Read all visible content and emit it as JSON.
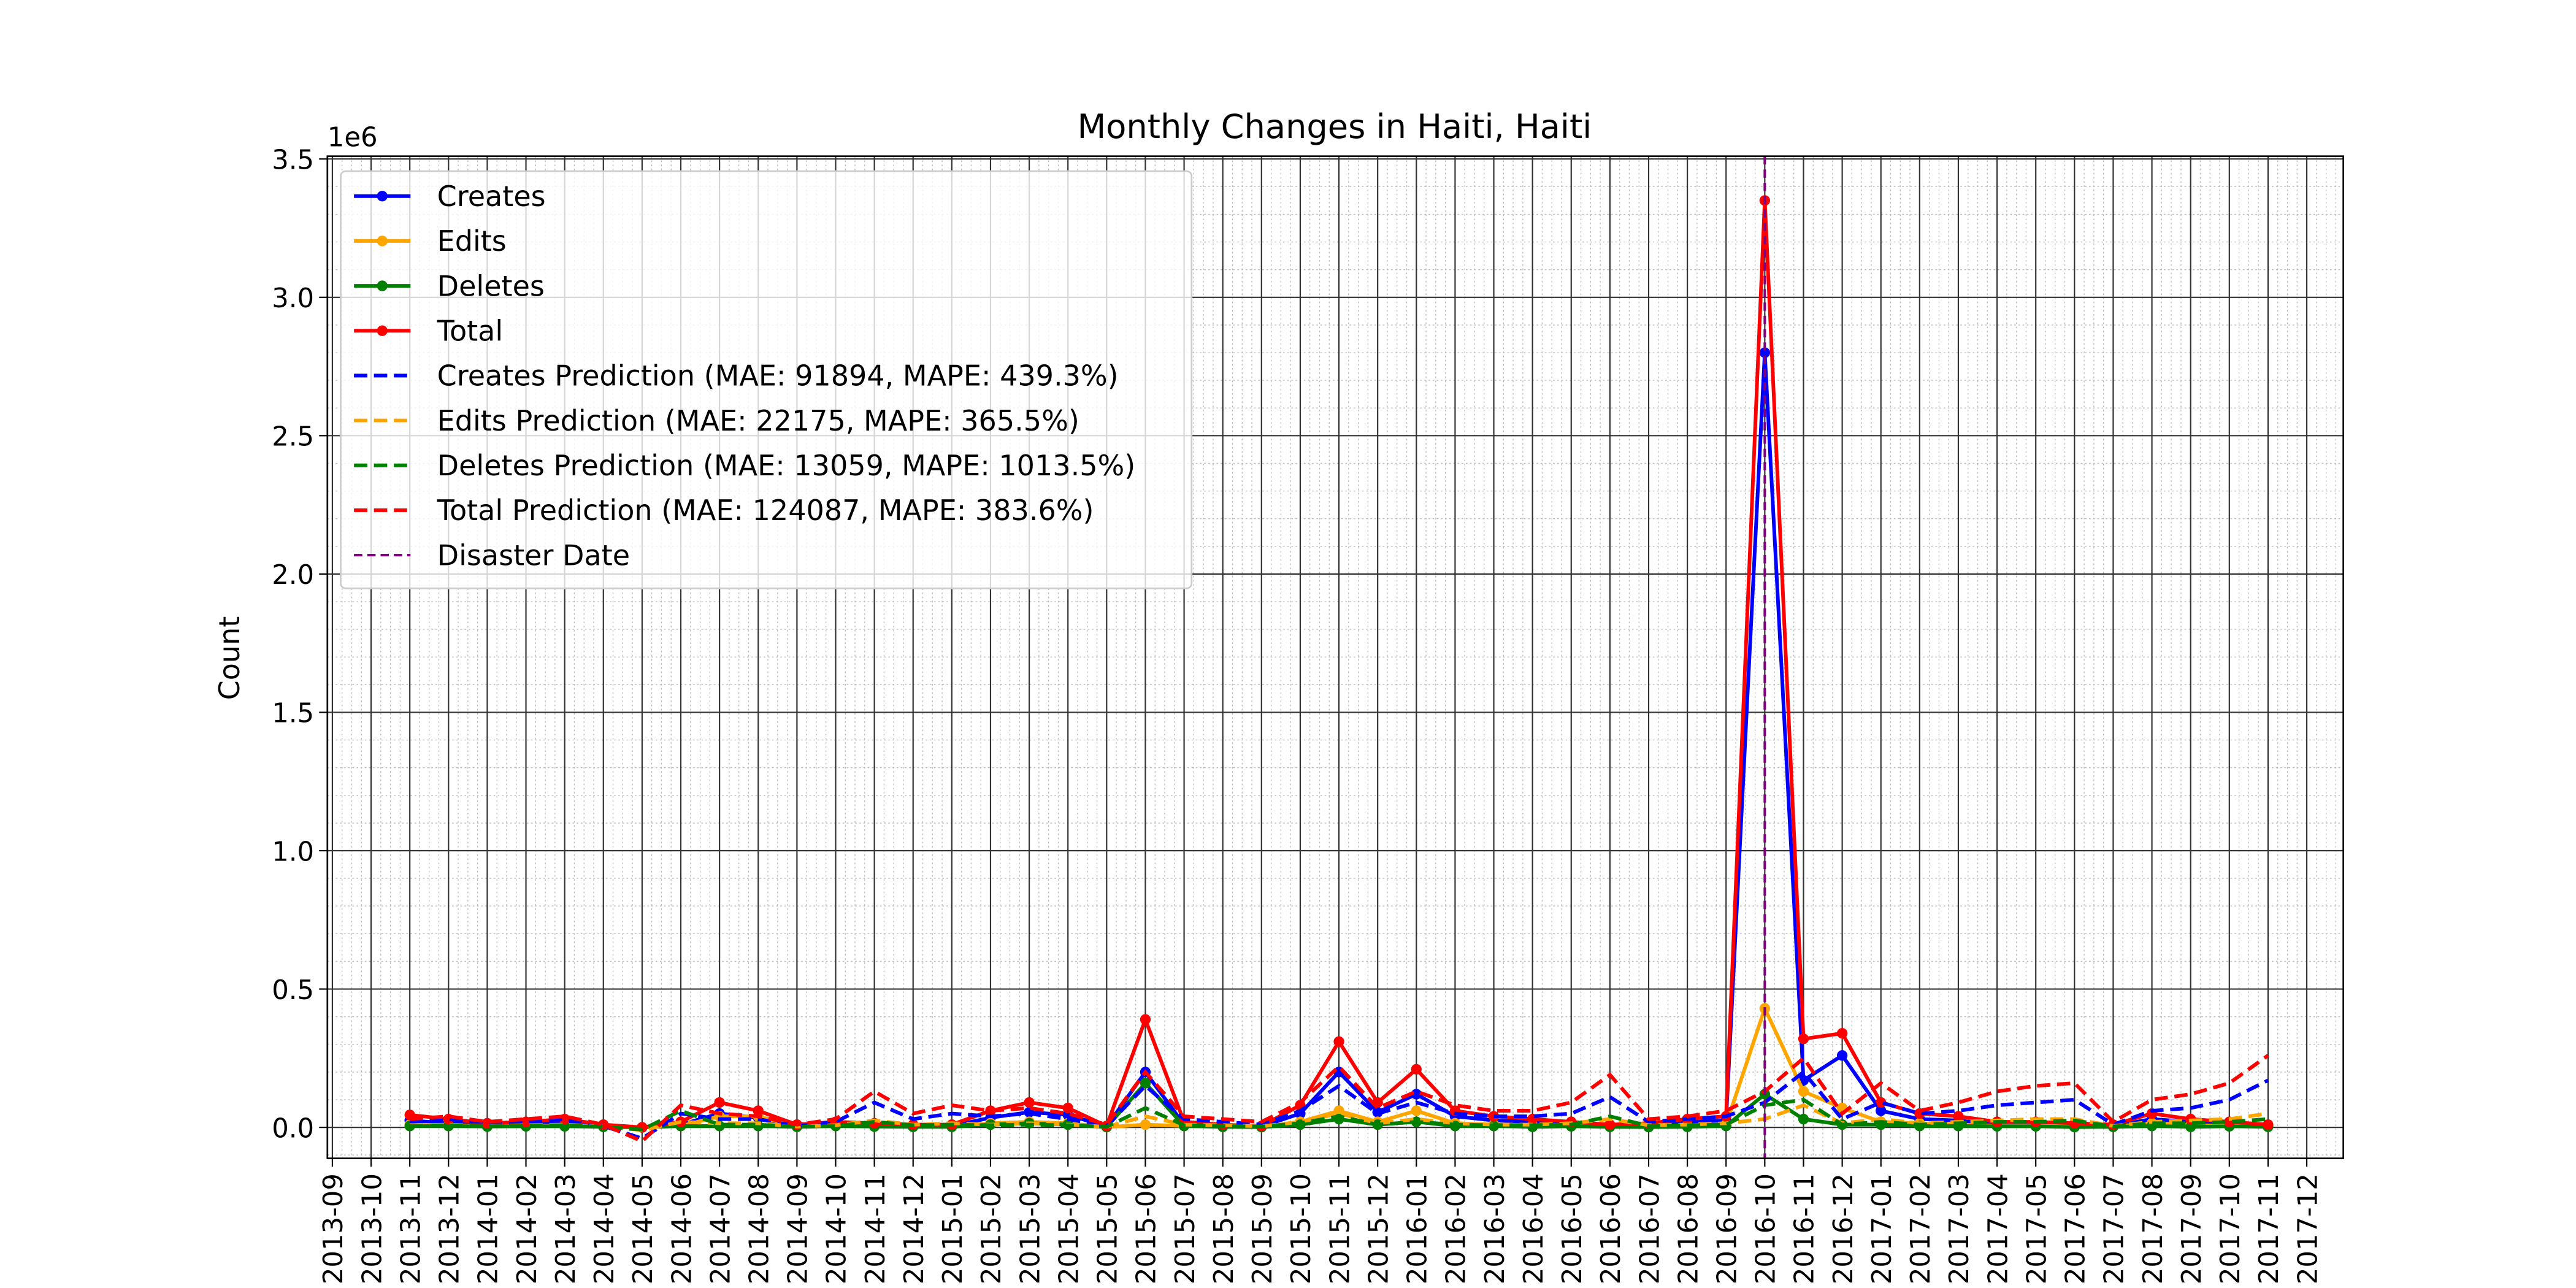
{
  "chart_data": {
    "type": "line",
    "title": "Monthly Changes in Haiti, Haiti",
    "ylabel": "Count",
    "y_offset_label": "1e6",
    "x": [
      "2013-11",
      "2013-12",
      "2014-01",
      "2014-02",
      "2014-03",
      "2014-04",
      "2014-05",
      "2014-06",
      "2014-07",
      "2014-08",
      "2014-09",
      "2014-10",
      "2014-11",
      "2014-12",
      "2015-01",
      "2015-02",
      "2015-03",
      "2015-04",
      "2015-05",
      "2015-06",
      "2015-07",
      "2015-08",
      "2015-09",
      "2015-10",
      "2015-11",
      "2015-12",
      "2016-01",
      "2016-02",
      "2016-03",
      "2016-04",
      "2016-05",
      "2016-06",
      "2016-07",
      "2016-08",
      "2016-09",
      "2016-10",
      "2016-11",
      "2016-12",
      "2017-01",
      "2017-02",
      "2017-03",
      "2017-04",
      "2017-05",
      "2017-06",
      "2017-07",
      "2017-08",
      "2017-09",
      "2017-10",
      "2017-11"
    ],
    "xlim": [
      "2013-09",
      "2017-12"
    ],
    "xticks": [
      "2013-09",
      "2013-10",
      "2013-11",
      "2013-12",
      "2014-01",
      "2014-02",
      "2014-03",
      "2014-04",
      "2014-05",
      "2014-06",
      "2014-07",
      "2014-08",
      "2014-09",
      "2014-10",
      "2014-11",
      "2014-12",
      "2015-01",
      "2015-02",
      "2015-03",
      "2015-04",
      "2015-05",
      "2015-06",
      "2015-07",
      "2015-08",
      "2015-09",
      "2015-10",
      "2015-11",
      "2015-12",
      "2016-01",
      "2016-02",
      "2016-03",
      "2016-04",
      "2016-05",
      "2016-06",
      "2016-07",
      "2016-08",
      "2016-09",
      "2016-10",
      "2016-11",
      "2016-12",
      "2017-01",
      "2017-02",
      "2017-03",
      "2017-04",
      "2017-05",
      "2017-06",
      "2017-07",
      "2017-08",
      "2017-09",
      "2017-10",
      "2017-11",
      "2017-12"
    ],
    "ylim": [
      -112000,
      3510000
    ],
    "yticks": [
      {
        "value": 0,
        "label": "0.0"
      },
      {
        "value": 500000,
        "label": "0.5"
      },
      {
        "value": 1000000,
        "label": "1.0"
      },
      {
        "value": 1500000,
        "label": "1.5"
      },
      {
        "value": 2000000,
        "label": "2.0"
      },
      {
        "value": 2500000,
        "label": "2.5"
      },
      {
        "value": 3000000,
        "label": "3.0"
      },
      {
        "value": 3500000,
        "label": "3.5"
      }
    ],
    "grid": true,
    "minor_grid": true,
    "legend": "upper left",
    "series": [
      {
        "name": "Creates",
        "color": "#0000ff",
        "linestyle": "solid",
        "marker": true,
        "values": [
          25000,
          15000,
          8000,
          10000,
          20000,
          5000,
          0,
          10000,
          50000,
          35000,
          5000,
          10000,
          8000,
          5000,
          5000,
          35000,
          55000,
          45000,
          3000,
          200000,
          10000,
          5000,
          3000,
          50000,
          200000,
          55000,
          120000,
          40000,
          25000,
          20000,
          10000,
          5000,
          10000,
          20000,
          25000,
          2800000,
          170000,
          260000,
          60000,
          30000,
          25000,
          10000,
          10000,
          10000,
          5000,
          30000,
          20000,
          10000,
          5000
        ]
      },
      {
        "name": "Edits",
        "color": "#ffa500",
        "linestyle": "solid",
        "marker": true,
        "values": [
          10000,
          8000,
          4000,
          6000,
          6000,
          3000,
          0,
          5000,
          40000,
          40000,
          3000,
          5000,
          4000,
          3000,
          3000,
          15000,
          20000,
          15000,
          1000,
          10000,
          5000,
          3000,
          1000,
          20000,
          60000,
          20000,
          60000,
          15000,
          10000,
          8000,
          6000,
          3000,
          4000,
          8000,
          10000,
          430000,
          130000,
          70000,
          20000,
          15000,
          10000,
          6000,
          6000,
          4000,
          3000,
          15000,
          8000,
          6000,
          3000
        ]
      },
      {
        "name": "Deletes",
        "color": "#008000",
        "linestyle": "solid",
        "marker": true,
        "values": [
          5000,
          5000,
          3000,
          4000,
          4000,
          2000,
          0,
          5000,
          5000,
          5000,
          2000,
          5000,
          3000,
          2000,
          2000,
          10000,
          15000,
          10000,
          1000,
          160000,
          5000,
          2000,
          1000,
          10000,
          30000,
          10000,
          20000,
          5000,
          5000,
          2000,
          4000,
          2000,
          1000,
          2000,
          5000,
          120000,
          30000,
          10000,
          10000,
          5000,
          5000,
          4000,
          4000,
          1000,
          2000,
          5000,
          2000,
          4000,
          2000
        ]
      },
      {
        "name": "Total",
        "color": "#ff0000",
        "linestyle": "solid",
        "marker": true,
        "values": [
          45000,
          30000,
          15000,
          20000,
          30000,
          10000,
          0,
          20000,
          90000,
          60000,
          10000,
          20000,
          15000,
          10000,
          10000,
          60000,
          90000,
          70000,
          5000,
          390000,
          20000,
          10000,
          5000,
          80000,
          310000,
          90000,
          210000,
          60000,
          40000,
          30000,
          20000,
          10000,
          15000,
          30000,
          40000,
          3350000,
          320000,
          340000,
          90000,
          50000,
          40000,
          20000,
          20000,
          15000,
          10000,
          50000,
          30000,
          20000,
          10000
        ]
      },
      {
        "name": "Creates Prediction (MAE: 91894, MAPE: 439.3%)",
        "color": "#0000ff",
        "linestyle": "dashed",
        "marker": false,
        "values": [
          20000,
          30000,
          10000,
          20000,
          30000,
          5000,
          -40000,
          50000,
          30000,
          30000,
          5000,
          20000,
          90000,
          30000,
          50000,
          40000,
          50000,
          30000,
          5000,
          150000,
          30000,
          20000,
          10000,
          60000,
          150000,
          50000,
          90000,
          50000,
          40000,
          40000,
          50000,
          110000,
          20000,
          30000,
          40000,
          90000,
          200000,
          30000,
          90000,
          50000,
          60000,
          80000,
          90000,
          100000,
          10000,
          60000,
          70000,
          100000,
          170000
        ]
      },
      {
        "name": "Edits Prediction (MAE: 22175, MAPE: 365.5%)",
        "color": "#ffa500",
        "linestyle": "dashed",
        "marker": false,
        "values": [
          8000,
          10000,
          5000,
          8000,
          10000,
          3000,
          -10000,
          20000,
          15000,
          15000,
          3000,
          8000,
          25000,
          10000,
          15000,
          10000,
          15000,
          10000,
          2000,
          40000,
          10000,
          8000,
          4000,
          20000,
          50000,
          15000,
          30000,
          15000,
          10000,
          10000,
          15000,
          30000,
          8000,
          10000,
          15000,
          30000,
          80000,
          15000,
          30000,
          15000,
          20000,
          25000,
          30000,
          30000,
          5000,
          20000,
          25000,
          30000,
          50000
        ]
      },
      {
        "name": "Deletes Prediction (MAE: 13059, MAPE: 1013.5%)",
        "color": "#008000",
        "linestyle": "dashed",
        "marker": false,
        "values": [
          5000,
          8000,
          4000,
          6000,
          8000,
          2000,
          -8000,
          60000,
          10000,
          10000,
          2000,
          5000,
          20000,
          8000,
          10000,
          8000,
          10000,
          8000,
          2000,
          70000,
          8000,
          5000,
          3000,
          15000,
          40000,
          10000,
          20000,
          10000,
          8000,
          8000,
          10000,
          40000,
          5000,
          8000,
          10000,
          80000,
          100000,
          10000,
          20000,
          10000,
          15000,
          20000,
          20000,
          25000,
          3000,
          15000,
          15000,
          20000,
          30000
        ]
      },
      {
        "name": "Total Prediction (MAE: 124087, MAPE: 383.6%)",
        "color": "#ff0000",
        "linestyle": "dashed",
        "marker": false,
        "values": [
          30000,
          40000,
          20000,
          30000,
          40000,
          10000,
          -50000,
          80000,
          50000,
          40000,
          10000,
          30000,
          130000,
          50000,
          80000,
          60000,
          70000,
          50000,
          10000,
          200000,
          40000,
          30000,
          20000,
          90000,
          220000,
          70000,
          130000,
          80000,
          60000,
          60000,
          90000,
          190000,
          30000,
          40000,
          60000,
          130000,
          250000,
          50000,
          160000,
          60000,
          90000,
          130000,
          150000,
          160000,
          20000,
          100000,
          120000,
          160000,
          260000
        ]
      }
    ],
    "disaster": {
      "name": "Disaster Date",
      "x": "2016-10",
      "color": "#800080"
    }
  }
}
